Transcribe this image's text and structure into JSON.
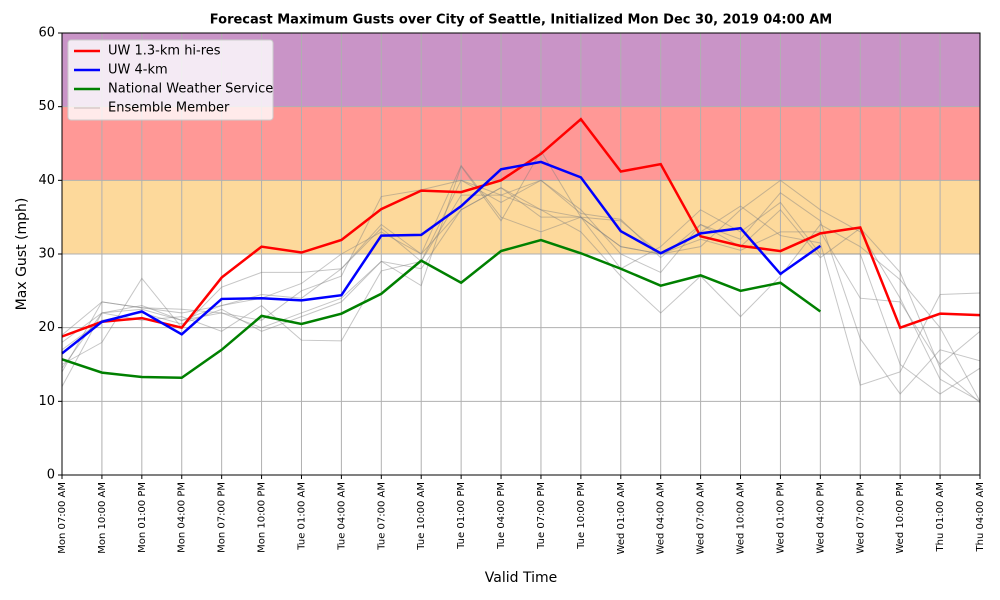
{
  "chart_data": {
    "type": "line",
    "title": "Forecast Maximum Gusts over City of Seattle, Initialized Mon Dec 30, 2019 04:00 AM",
    "x_label": "Valid Time",
    "y_label": "Max Gust (mph)",
    "categories": [
      "Mon 07:00 AM",
      "Mon 10:00 AM",
      "Mon 01:00 PM",
      "Mon 04:00 PM",
      "Mon 07:00 PM",
      "Mon 10:00 PM",
      "Tue 01:00 AM",
      "Tue 04:00 AM",
      "Tue 07:00 AM",
      "Tue 10:00 AM",
      "Tue 01:00 PM",
      "Tue 04:00 PM",
      "Tue 07:00 PM",
      "Tue 10:00 PM",
      "Wed 01:00 AM",
      "Wed 04:00 AM",
      "Wed 07:00 AM",
      "Wed 10:00 AM",
      "Wed 01:00 PM",
      "Wed 04:00 PM",
      "Wed 07:00 PM",
      "Wed 10:00 PM",
      "Thu 01:00 AM",
      "Thu 04:00 AM"
    ],
    "ylim": [
      0,
      60
    ],
    "yticks": [
      0,
      10,
      20,
      30,
      40,
      50,
      60
    ],
    "grid": true,
    "legend": "upper-left",
    "bands": [
      {
        "from": 30,
        "to": 40,
        "color": "#fdd99b"
      },
      {
        "from": 40,
        "to": 50,
        "color": "#ff9896"
      },
      {
        "from": 50,
        "to": 60,
        "color": "#c994c7"
      }
    ],
    "ensemble": {
      "name": "Ensemble Member",
      "color": "#808080",
      "members": [
        [
          12,
          22,
          22.5,
          21,
          22,
          20,
          22,
          24,
          29,
          28,
          36,
          39,
          36,
          35,
          31,
          30,
          31,
          36,
          40,
          36,
          33,
          24,
          13,
          10
        ],
        [
          14,
          23.5,
          22.7,
          22,
          23,
          24.5,
          24,
          28,
          34,
          30,
          42,
          35,
          33,
          35,
          28,
          31,
          36,
          33,
          37,
          30,
          30,
          15,
          11,
          14.5
        ],
        [
          15,
          18,
          26.7,
          20,
          25.5,
          27.5,
          27.5,
          28,
          33.5,
          29,
          38,
          38,
          36,
          33,
          27,
          22,
          27,
          21.5,
          27,
          34,
          31,
          26.5,
          20,
          10
        ],
        [
          18,
          22,
          21,
          21.5,
          19.5,
          23,
          18.3,
          18.2,
          27.7,
          29,
          40,
          37,
          40,
          35.5,
          34.7,
          29.5,
          34,
          31,
          36,
          29.5,
          33.5,
          27.5,
          14.5,
          9.8
        ],
        [
          17,
          21,
          22,
          20.5,
          22.5,
          19.5,
          21.5,
          23.5,
          29,
          25.7,
          41.9,
          34.5,
          44,
          35,
          34.5,
          30,
          33,
          36.5,
          32.5,
          31.5,
          12.2,
          14,
          24.5,
          24.7
        ],
        [
          19,
          23.5,
          22.7,
          22.5,
          22,
          21,
          25,
          27,
          37.8,
          38.7,
          40,
          38,
          40,
          36,
          30,
          27.5,
          34,
          32,
          38.3,
          34.5,
          18.5,
          11,
          17,
          15.5
        ],
        [
          14.5,
          22,
          23,
          21,
          23,
          24,
          26,
          30,
          33,
          30,
          36,
          39,
          35,
          35,
          31,
          30,
          32,
          30.5,
          33,
          33,
          24,
          23.5,
          15,
          19.5
        ]
      ]
    },
    "series": [
      {
        "name": "UW 1.3-km hi-res",
        "color": "#ff0000",
        "values": [
          18.8,
          20.8,
          21.3,
          20.0,
          26.8,
          31.0,
          30.2,
          31.9,
          36.1,
          38.6,
          38.4,
          40.0,
          43.6,
          48.3,
          41.2,
          42.2,
          32.4,
          31.1,
          30.4,
          32.8,
          33.6,
          20.0,
          21.9,
          21.7
        ]
      },
      {
        "name": "UW 4-km",
        "color": "#0000ff",
        "values": [
          16.5,
          20.8,
          22.2,
          19.1,
          23.9,
          24.0,
          23.7,
          24.4,
          32.5,
          32.6,
          36.5,
          41.5,
          42.5,
          40.4,
          33.1,
          30.1,
          32.8,
          33.5,
          27.3,
          31.1,
          null,
          null,
          null,
          null
        ]
      },
      {
        "name": "National Weather Service",
        "color": "#008000",
        "values": [
          15.7,
          13.9,
          13.3,
          13.2,
          17.0,
          21.6,
          20.5,
          21.9,
          24.6,
          29.1,
          26.1,
          30.4,
          31.9,
          30.1,
          28.0,
          25.7,
          27.1,
          25.0,
          26.1,
          22.2,
          null,
          null,
          null,
          null
        ]
      }
    ]
  }
}
